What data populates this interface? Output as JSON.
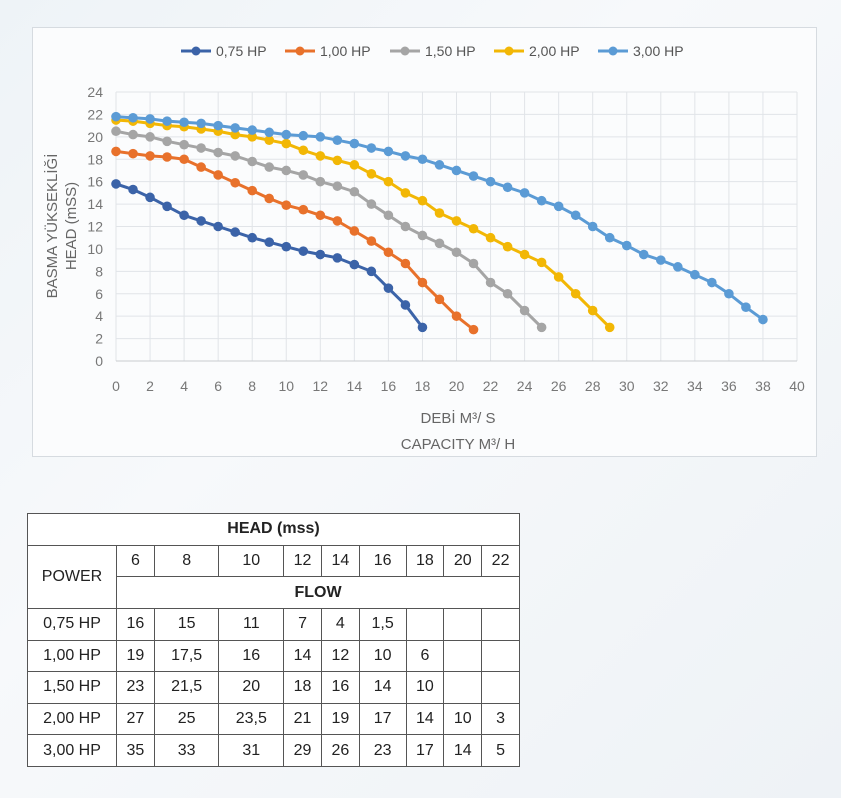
{
  "chart_data": {
    "type": "line",
    "ylabel_lines": [
      "BASMA YÜKSEKLİĞİ",
      "HEAD (mSS)"
    ],
    "xlabel_lines": [
      "DEBİ M³/ S",
      "CAPACITY M³/ H"
    ],
    "xlim": [
      0,
      40
    ],
    "ylim": [
      0,
      24
    ],
    "xticks": [
      0,
      2,
      4,
      6,
      8,
      10,
      12,
      14,
      16,
      18,
      20,
      22,
      24,
      26,
      28,
      30,
      32,
      34,
      36,
      38,
      40
    ],
    "yticks": [
      0,
      2,
      4,
      6,
      8,
      10,
      12,
      14,
      16,
      18,
      20,
      22,
      24
    ],
    "grid": true,
    "legend_position": "top",
    "series": [
      {
        "name": "0,75 HP",
        "color": "#3b63a8",
        "x": [
          0,
          1,
          2,
          3,
          4,
          5,
          6,
          7,
          8,
          9,
          10,
          11,
          12,
          13,
          14,
          15,
          16,
          17,
          18
        ],
        "y": [
          15.8,
          15.3,
          14.6,
          13.8,
          13.0,
          12.5,
          12.0,
          11.5,
          11.0,
          10.6,
          10.2,
          9.8,
          9.5,
          9.2,
          8.6,
          8.0,
          6.5,
          5.0,
          3.0
        ]
      },
      {
        "name": "1,00 HP",
        "color": "#e8712b",
        "x": [
          0,
          1,
          2,
          3,
          4,
          5,
          6,
          7,
          8,
          9,
          10,
          11,
          12,
          13,
          14,
          15,
          16,
          17,
          18,
          19,
          20,
          21
        ],
        "y": [
          18.7,
          18.5,
          18.3,
          18.2,
          18.0,
          17.3,
          16.6,
          15.9,
          15.2,
          14.5,
          13.9,
          13.5,
          13.0,
          12.5,
          11.6,
          10.7,
          9.7,
          8.7,
          7.0,
          5.5,
          4.0,
          2.8
        ]
      },
      {
        "name": "1,50 HP",
        "color": "#a5a5a5",
        "x": [
          0,
          1,
          2,
          3,
          4,
          5,
          6,
          7,
          8,
          9,
          10,
          11,
          12,
          13,
          14,
          15,
          16,
          17,
          18,
          19,
          20,
          21,
          22,
          23,
          24,
          25
        ],
        "y": [
          20.5,
          20.2,
          20.0,
          19.6,
          19.3,
          19.0,
          18.6,
          18.3,
          17.8,
          17.3,
          17.0,
          16.6,
          16.0,
          15.6,
          15.1,
          14.0,
          13.0,
          12.0,
          11.2,
          10.5,
          9.7,
          8.7,
          7.0,
          6.0,
          4.5,
          3.0
        ]
      },
      {
        "name": "2,00 HP",
        "color": "#f2b705",
        "x": [
          0,
          1,
          2,
          3,
          4,
          5,
          6,
          7,
          8,
          9,
          10,
          11,
          12,
          13,
          14,
          15,
          16,
          17,
          18,
          19,
          20,
          21,
          22,
          23,
          24,
          25,
          26,
          27,
          28,
          29
        ],
        "y": [
          21.5,
          21.4,
          21.2,
          21.0,
          20.9,
          20.7,
          20.5,
          20.2,
          20.0,
          19.7,
          19.4,
          18.8,
          18.3,
          17.9,
          17.5,
          16.7,
          16.0,
          15.0,
          14.3,
          13.2,
          12.5,
          11.8,
          11.0,
          10.2,
          9.5,
          8.8,
          7.5,
          6.0,
          4.5,
          3.0
        ]
      },
      {
        "name": "3,00 HP",
        "color": "#5b9bd5",
        "x": [
          0,
          1,
          2,
          3,
          4,
          5,
          6,
          7,
          8,
          9,
          10,
          11,
          12,
          13,
          14,
          15,
          16,
          17,
          18,
          19,
          20,
          21,
          22,
          23,
          24,
          25,
          26,
          27,
          28,
          29,
          30,
          31,
          32,
          33,
          34,
          35,
          36,
          37,
          38
        ],
        "y": [
          21.8,
          21.7,
          21.6,
          21.4,
          21.3,
          21.2,
          21.0,
          20.8,
          20.6,
          20.4,
          20.2,
          20.1,
          20.0,
          19.7,
          19.4,
          19.0,
          18.7,
          18.3,
          18.0,
          17.5,
          17.0,
          16.5,
          16.0,
          15.5,
          15.0,
          14.3,
          13.8,
          13.0,
          12.0,
          11.0,
          10.3,
          9.5,
          9.0,
          8.4,
          7.7,
          7.0,
          6.0,
          4.8,
          3.7
        ]
      }
    ]
  },
  "table": {
    "title": "HEAD (mss)",
    "power_label": "POWER",
    "flow_label": "FLOW",
    "head_values": [
      "6",
      "8",
      "10",
      "12",
      "14",
      "16",
      "18",
      "20",
      "22"
    ],
    "rows": [
      {
        "power": "0,75 HP",
        "flows": [
          "16",
          "15",
          "11",
          "7",
          "4",
          "1,5",
          "",
          "",
          ""
        ]
      },
      {
        "power": "1,00 HP",
        "flows": [
          "19",
          "17,5",
          "16",
          "14",
          "12",
          "10",
          "6",
          "",
          ""
        ]
      },
      {
        "power": "1,50 HP",
        "flows": [
          "23",
          "21,5",
          "20",
          "18",
          "16",
          "14",
          "10",
          "",
          ""
        ]
      },
      {
        "power": "2,00 HP",
        "flows": [
          "27",
          "25",
          "23,5",
          "21",
          "19",
          "17",
          "14",
          "10",
          "3"
        ]
      },
      {
        "power": "3,00 HP",
        "flows": [
          "35",
          "33",
          "31",
          "29",
          "26",
          "23",
          "17",
          "14",
          "5"
        ]
      }
    ]
  }
}
